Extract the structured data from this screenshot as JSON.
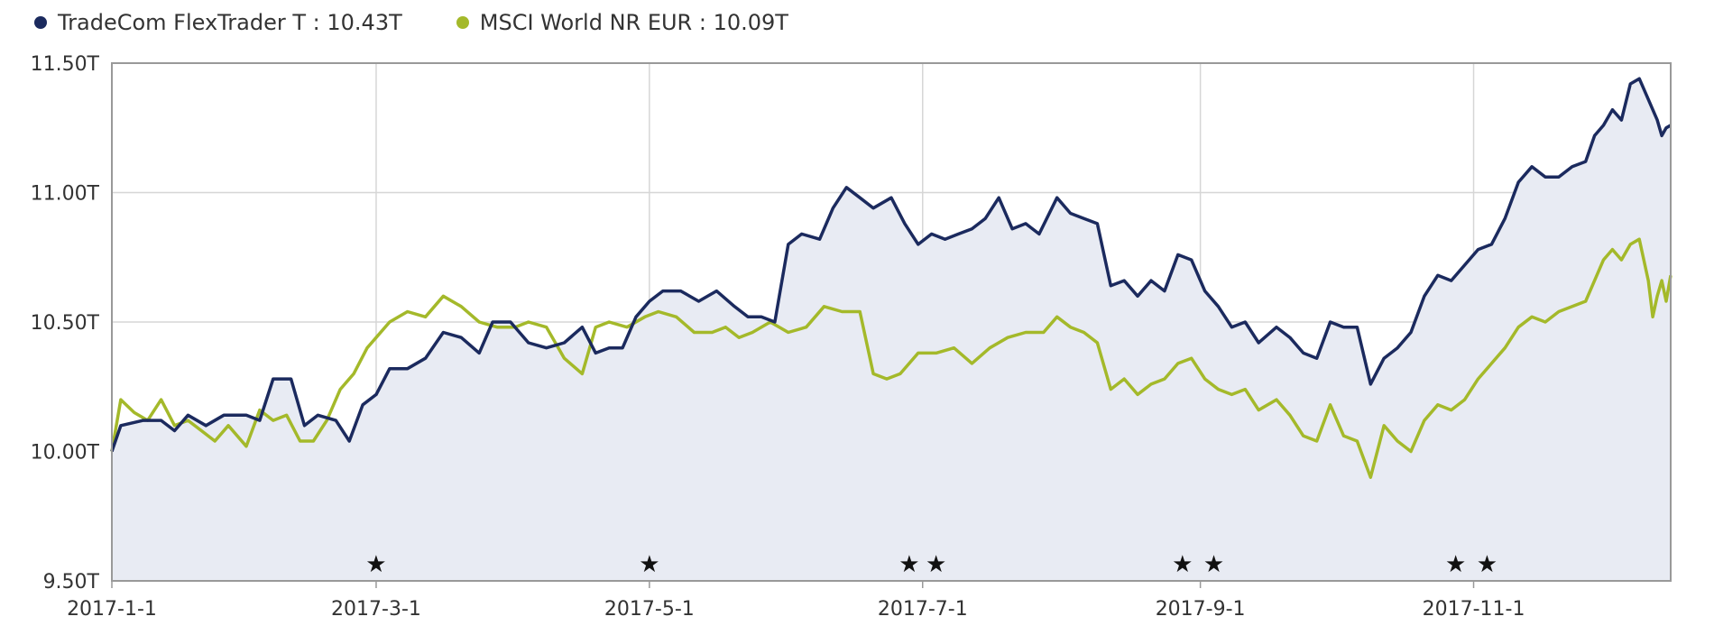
{
  "legend": {
    "items": [
      {
        "label": "TradeCom FlexTrader T : 10.43T",
        "color": "#1b2a5e"
      },
      {
        "label": "MSCI World NR EUR : 10.09T",
        "color": "#a4b92a"
      }
    ]
  },
  "chart_data": {
    "type": "line",
    "ylim": [
      9.5,
      11.5
    ],
    "yticks": [
      9.5,
      10.0,
      10.5,
      11.0,
      11.5
    ],
    "ytick_labels": [
      "9.50T",
      "10.00T",
      "10.50T",
      "11.00T",
      "11.50T"
    ],
    "xlim": [
      "2017-01-01",
      "2017-12-15"
    ],
    "xticks": [
      "2017-01-01",
      "2017-03-01",
      "2017-05-01",
      "2017-07-01",
      "2017-09-01",
      "2017-11-01"
    ],
    "xtick_labels": [
      "2017-1-1",
      "2017-3-1",
      "2017-5-1",
      "2017-7-1",
      "2017-9-1",
      "2017-11-1"
    ],
    "grid": true,
    "legend_position": "top-left",
    "markers": {
      "symbol": "★",
      "dates": [
        "2017-03-01",
        "2017-05-01",
        "2017-06-28",
        "2017-07-04",
        "2017-08-28",
        "2017-09-04",
        "2017-10-28",
        "2017-11-04"
      ]
    },
    "series": [
      {
        "name": "TradeCom FlexTrader T",
        "color": "#1b2a5e",
        "fill": "#e8ebf3",
        "points": [
          [
            "2017-01-01",
            10.0
          ],
          [
            "2017-01-03",
            10.1
          ],
          [
            "2017-01-08",
            10.12
          ],
          [
            "2017-01-12",
            10.12
          ],
          [
            "2017-01-15",
            10.08
          ],
          [
            "2017-01-18",
            10.14
          ],
          [
            "2017-01-22",
            10.1
          ],
          [
            "2017-01-26",
            10.14
          ],
          [
            "2017-01-31",
            10.14
          ],
          [
            "2017-02-03",
            10.12
          ],
          [
            "2017-02-06",
            10.28
          ],
          [
            "2017-02-10",
            10.28
          ],
          [
            "2017-02-13",
            10.1
          ],
          [
            "2017-02-16",
            10.14
          ],
          [
            "2017-02-20",
            10.12
          ],
          [
            "2017-02-23",
            10.04
          ],
          [
            "2017-02-26",
            10.18
          ],
          [
            "2017-03-01",
            10.22
          ],
          [
            "2017-03-04",
            10.32
          ],
          [
            "2017-03-08",
            10.32
          ],
          [
            "2017-03-12",
            10.36
          ],
          [
            "2017-03-16",
            10.46
          ],
          [
            "2017-03-20",
            10.44
          ],
          [
            "2017-03-24",
            10.38
          ],
          [
            "2017-03-27",
            10.5
          ],
          [
            "2017-03-31",
            10.5
          ],
          [
            "2017-04-04",
            10.42
          ],
          [
            "2017-04-08",
            10.4
          ],
          [
            "2017-04-12",
            10.42
          ],
          [
            "2017-04-16",
            10.48
          ],
          [
            "2017-04-19",
            10.38
          ],
          [
            "2017-04-22",
            10.4
          ],
          [
            "2017-04-25",
            10.4
          ],
          [
            "2017-04-28",
            10.52
          ],
          [
            "2017-05-01",
            10.58
          ],
          [
            "2017-05-04",
            10.62
          ],
          [
            "2017-05-08",
            10.62
          ],
          [
            "2017-05-12",
            10.58
          ],
          [
            "2017-05-16",
            10.62
          ],
          [
            "2017-05-20",
            10.56
          ],
          [
            "2017-05-23",
            10.52
          ],
          [
            "2017-05-26",
            10.52
          ],
          [
            "2017-05-29",
            10.5
          ],
          [
            "2017-06-01",
            10.8
          ],
          [
            "2017-06-04",
            10.84
          ],
          [
            "2017-06-08",
            10.82
          ],
          [
            "2017-06-11",
            10.94
          ],
          [
            "2017-06-14",
            11.02
          ],
          [
            "2017-06-17",
            10.98
          ],
          [
            "2017-06-20",
            10.94
          ],
          [
            "2017-06-24",
            10.98
          ],
          [
            "2017-06-27",
            10.88
          ],
          [
            "2017-06-30",
            10.8
          ],
          [
            "2017-07-03",
            10.84
          ],
          [
            "2017-07-06",
            10.82
          ],
          [
            "2017-07-09",
            10.84
          ],
          [
            "2017-07-12",
            10.86
          ],
          [
            "2017-07-15",
            10.9
          ],
          [
            "2017-07-18",
            10.98
          ],
          [
            "2017-07-21",
            10.86
          ],
          [
            "2017-07-24",
            10.88
          ],
          [
            "2017-07-27",
            10.84
          ],
          [
            "2017-07-31",
            10.98
          ],
          [
            "2017-08-03",
            10.92
          ],
          [
            "2017-08-06",
            10.9
          ],
          [
            "2017-08-09",
            10.88
          ],
          [
            "2017-08-12",
            10.64
          ],
          [
            "2017-08-15",
            10.66
          ],
          [
            "2017-08-18",
            10.6
          ],
          [
            "2017-08-21",
            10.66
          ],
          [
            "2017-08-24",
            10.62
          ],
          [
            "2017-08-27",
            10.76
          ],
          [
            "2017-08-30",
            10.74
          ],
          [
            "2017-09-02",
            10.62
          ],
          [
            "2017-09-05",
            10.56
          ],
          [
            "2017-09-08",
            10.48
          ],
          [
            "2017-09-11",
            10.5
          ],
          [
            "2017-09-14",
            10.42
          ],
          [
            "2017-09-18",
            10.48
          ],
          [
            "2017-09-21",
            10.44
          ],
          [
            "2017-09-24",
            10.38
          ],
          [
            "2017-09-27",
            10.36
          ],
          [
            "2017-09-30",
            10.5
          ],
          [
            "2017-10-03",
            10.48
          ],
          [
            "2017-10-06",
            10.48
          ],
          [
            "2017-10-09",
            10.26
          ],
          [
            "2017-10-12",
            10.36
          ],
          [
            "2017-10-15",
            10.4
          ],
          [
            "2017-10-18",
            10.46
          ],
          [
            "2017-10-21",
            10.6
          ],
          [
            "2017-10-24",
            10.68
          ],
          [
            "2017-10-27",
            10.66
          ],
          [
            "2017-10-30",
            10.72
          ],
          [
            "2017-11-02",
            10.78
          ],
          [
            "2017-11-05",
            10.8
          ],
          [
            "2017-11-08",
            10.9
          ],
          [
            "2017-11-11",
            11.04
          ],
          [
            "2017-11-14",
            11.1
          ],
          [
            "2017-11-17",
            11.06
          ],
          [
            "2017-11-20",
            11.06
          ],
          [
            "2017-11-23",
            11.1
          ],
          [
            "2017-11-26",
            11.12
          ],
          [
            "2017-11-28",
            11.22
          ],
          [
            "2017-11-30",
            11.26
          ],
          [
            "2017-12-02",
            11.32
          ],
          [
            "2017-12-04",
            11.28
          ],
          [
            "2017-12-06",
            11.42
          ],
          [
            "2017-12-08",
            11.44
          ],
          [
            "2017-12-10",
            11.36
          ],
          [
            "2017-12-12",
            11.28
          ],
          [
            "2017-12-13",
            11.22
          ],
          [
            "2017-12-14",
            11.25
          ],
          [
            "2017-12-15",
            11.26
          ]
        ]
      },
      {
        "name": "MSCI World NR EUR",
        "color": "#a4b92a",
        "points": [
          [
            "2017-01-01",
            10.0
          ],
          [
            "2017-01-03",
            10.2
          ],
          [
            "2017-01-06",
            10.15
          ],
          [
            "2017-01-09",
            10.12
          ],
          [
            "2017-01-12",
            10.2
          ],
          [
            "2017-01-15",
            10.1
          ],
          [
            "2017-01-18",
            10.12
          ],
          [
            "2017-01-21",
            10.08
          ],
          [
            "2017-01-24",
            10.04
          ],
          [
            "2017-01-27",
            10.1
          ],
          [
            "2017-01-31",
            10.02
          ],
          [
            "2017-02-03",
            10.16
          ],
          [
            "2017-02-06",
            10.12
          ],
          [
            "2017-02-09",
            10.14
          ],
          [
            "2017-02-12",
            10.04
          ],
          [
            "2017-02-15",
            10.04
          ],
          [
            "2017-02-18",
            10.12
          ],
          [
            "2017-02-21",
            10.24
          ],
          [
            "2017-02-24",
            10.3
          ],
          [
            "2017-02-27",
            10.4
          ],
          [
            "2017-03-01",
            10.44
          ],
          [
            "2017-03-04",
            10.5
          ],
          [
            "2017-03-08",
            10.54
          ],
          [
            "2017-03-12",
            10.52
          ],
          [
            "2017-03-16",
            10.6
          ],
          [
            "2017-03-20",
            10.56
          ],
          [
            "2017-03-24",
            10.5
          ],
          [
            "2017-03-28",
            10.48
          ],
          [
            "2017-04-01",
            10.48
          ],
          [
            "2017-04-04",
            10.5
          ],
          [
            "2017-04-08",
            10.48
          ],
          [
            "2017-04-12",
            10.36
          ],
          [
            "2017-04-16",
            10.3
          ],
          [
            "2017-04-19",
            10.48
          ],
          [
            "2017-04-22",
            10.5
          ],
          [
            "2017-04-26",
            10.48
          ],
          [
            "2017-04-30",
            10.52
          ],
          [
            "2017-05-03",
            10.54
          ],
          [
            "2017-05-07",
            10.52
          ],
          [
            "2017-05-11",
            10.46
          ],
          [
            "2017-05-15",
            10.46
          ],
          [
            "2017-05-18",
            10.48
          ],
          [
            "2017-05-21",
            10.44
          ],
          [
            "2017-05-24",
            10.46
          ],
          [
            "2017-05-28",
            10.5
          ],
          [
            "2017-06-01",
            10.46
          ],
          [
            "2017-06-05",
            10.48
          ],
          [
            "2017-06-09",
            10.56
          ],
          [
            "2017-06-13",
            10.54
          ],
          [
            "2017-06-17",
            10.54
          ],
          [
            "2017-06-20",
            10.3
          ],
          [
            "2017-06-23",
            10.28
          ],
          [
            "2017-06-26",
            10.3
          ],
          [
            "2017-06-30",
            10.38
          ],
          [
            "2017-07-04",
            10.38
          ],
          [
            "2017-07-08",
            10.4
          ],
          [
            "2017-07-12",
            10.34
          ],
          [
            "2017-07-16",
            10.4
          ],
          [
            "2017-07-20",
            10.44
          ],
          [
            "2017-07-24",
            10.46
          ],
          [
            "2017-07-28",
            10.46
          ],
          [
            "2017-07-31",
            10.52
          ],
          [
            "2017-08-03",
            10.48
          ],
          [
            "2017-08-06",
            10.46
          ],
          [
            "2017-08-09",
            10.42
          ],
          [
            "2017-08-12",
            10.24
          ],
          [
            "2017-08-15",
            10.28
          ],
          [
            "2017-08-18",
            10.22
          ],
          [
            "2017-08-21",
            10.26
          ],
          [
            "2017-08-24",
            10.28
          ],
          [
            "2017-08-27",
            10.34
          ],
          [
            "2017-08-30",
            10.36
          ],
          [
            "2017-09-02",
            10.28
          ],
          [
            "2017-09-05",
            10.24
          ],
          [
            "2017-09-08",
            10.22
          ],
          [
            "2017-09-11",
            10.24
          ],
          [
            "2017-09-14",
            10.16
          ],
          [
            "2017-09-18",
            10.2
          ],
          [
            "2017-09-21",
            10.14
          ],
          [
            "2017-09-24",
            10.06
          ],
          [
            "2017-09-27",
            10.04
          ],
          [
            "2017-09-30",
            10.18
          ],
          [
            "2017-10-03",
            10.06
          ],
          [
            "2017-10-06",
            10.04
          ],
          [
            "2017-10-09",
            9.9
          ],
          [
            "2017-10-12",
            10.1
          ],
          [
            "2017-10-15",
            10.04
          ],
          [
            "2017-10-18",
            10.0
          ],
          [
            "2017-10-21",
            10.12
          ],
          [
            "2017-10-24",
            10.18
          ],
          [
            "2017-10-27",
            10.16
          ],
          [
            "2017-10-30",
            10.2
          ],
          [
            "2017-11-02",
            10.28
          ],
          [
            "2017-11-05",
            10.34
          ],
          [
            "2017-11-08",
            10.4
          ],
          [
            "2017-11-11",
            10.48
          ],
          [
            "2017-11-14",
            10.52
          ],
          [
            "2017-11-17",
            10.5
          ],
          [
            "2017-11-20",
            10.54
          ],
          [
            "2017-11-23",
            10.56
          ],
          [
            "2017-11-26",
            10.58
          ],
          [
            "2017-11-28",
            10.66
          ],
          [
            "2017-11-30",
            10.74
          ],
          [
            "2017-12-02",
            10.78
          ],
          [
            "2017-12-04",
            10.74
          ],
          [
            "2017-12-06",
            10.8
          ],
          [
            "2017-12-08",
            10.82
          ],
          [
            "2017-12-10",
            10.66
          ],
          [
            "2017-12-11",
            10.52
          ],
          [
            "2017-12-12",
            10.6
          ],
          [
            "2017-12-13",
            10.66
          ],
          [
            "2017-12-14",
            10.58
          ],
          [
            "2017-12-15",
            10.68
          ]
        ]
      }
    ]
  }
}
